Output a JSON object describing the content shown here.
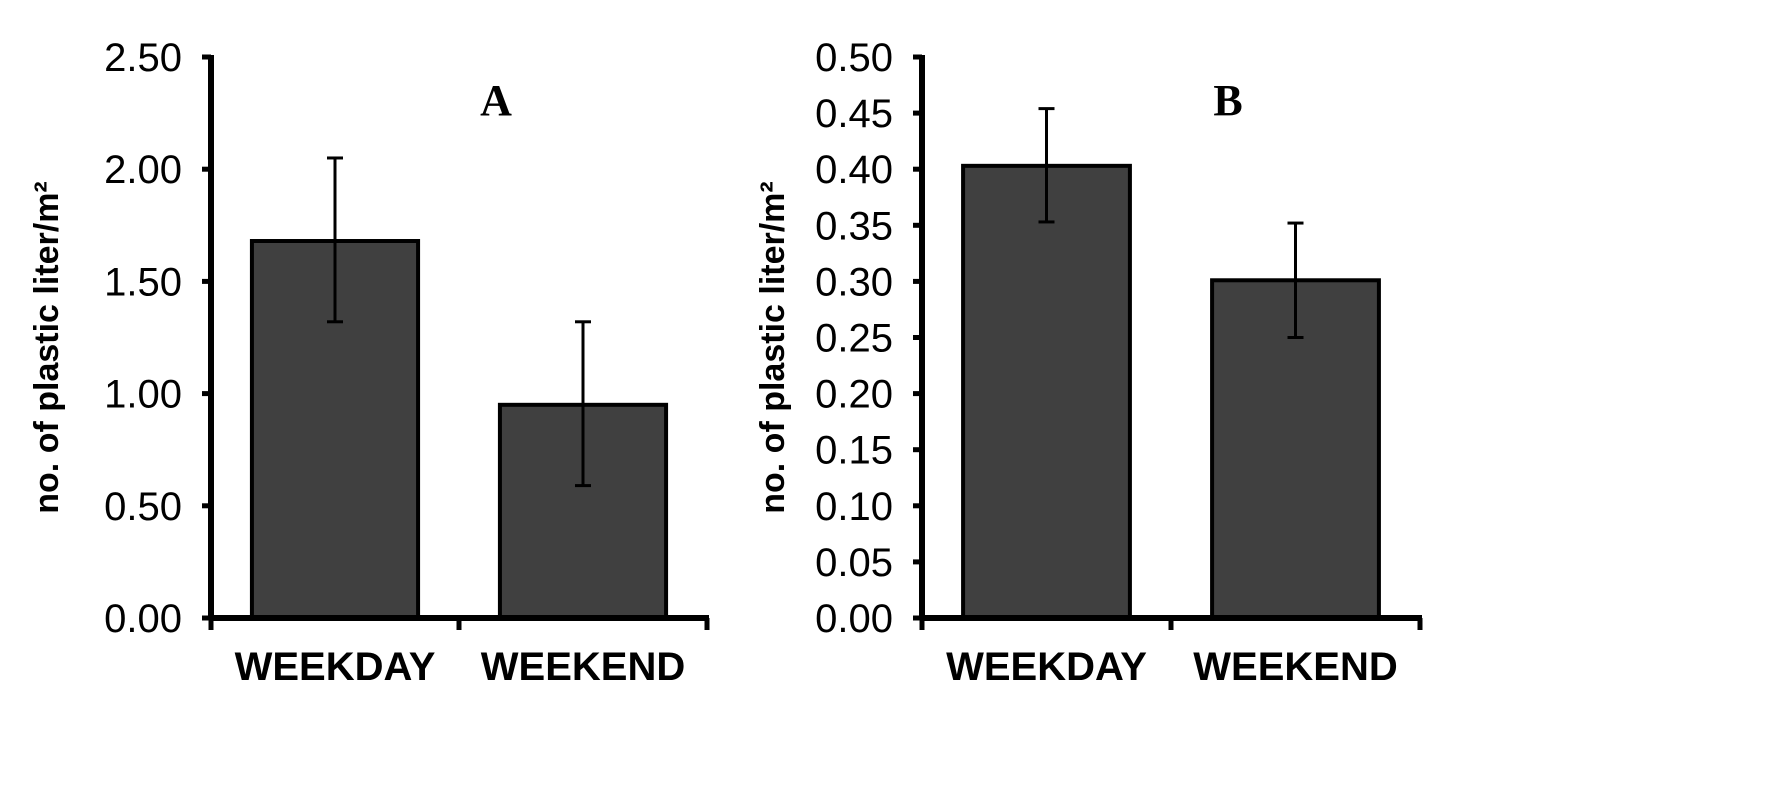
{
  "chart_data": [
    {
      "type": "bar",
      "panel_label": "A",
      "title": "",
      "xlabel": "",
      "ylabel": "no. of plastic liter/m²",
      "categories": [
        "WEEKDAY",
        "WEEKEND"
      ],
      "values": [
        1.68,
        0.95
      ],
      "error_low": [
        1.32,
        0.59
      ],
      "error_high": [
        2.05,
        1.32
      ],
      "ylim": [
        0,
        2.5
      ],
      "yticks": [
        "0.00",
        "0.50",
        "1.00",
        "1.50",
        "2.00",
        "2.50"
      ],
      "grid": false,
      "bar_color": "#404040"
    },
    {
      "type": "bar",
      "panel_label": "B",
      "title": "",
      "xlabel": "",
      "ylabel": "no. of plastic liter/m²",
      "categories": [
        "WEEKDAY",
        "WEEKEND"
      ],
      "values": [
        0.403,
        0.301
      ],
      "error_low": [
        0.353,
        0.25
      ],
      "error_high": [
        0.454,
        0.352
      ],
      "ylim": [
        0,
        0.5
      ],
      "yticks": [
        "0.00",
        "0.05",
        "0.10",
        "0.15",
        "0.20",
        "0.25",
        "0.30",
        "0.35",
        "0.40",
        "0.45",
        "0.50"
      ],
      "grid": false,
      "bar_color": "#404040"
    }
  ]
}
